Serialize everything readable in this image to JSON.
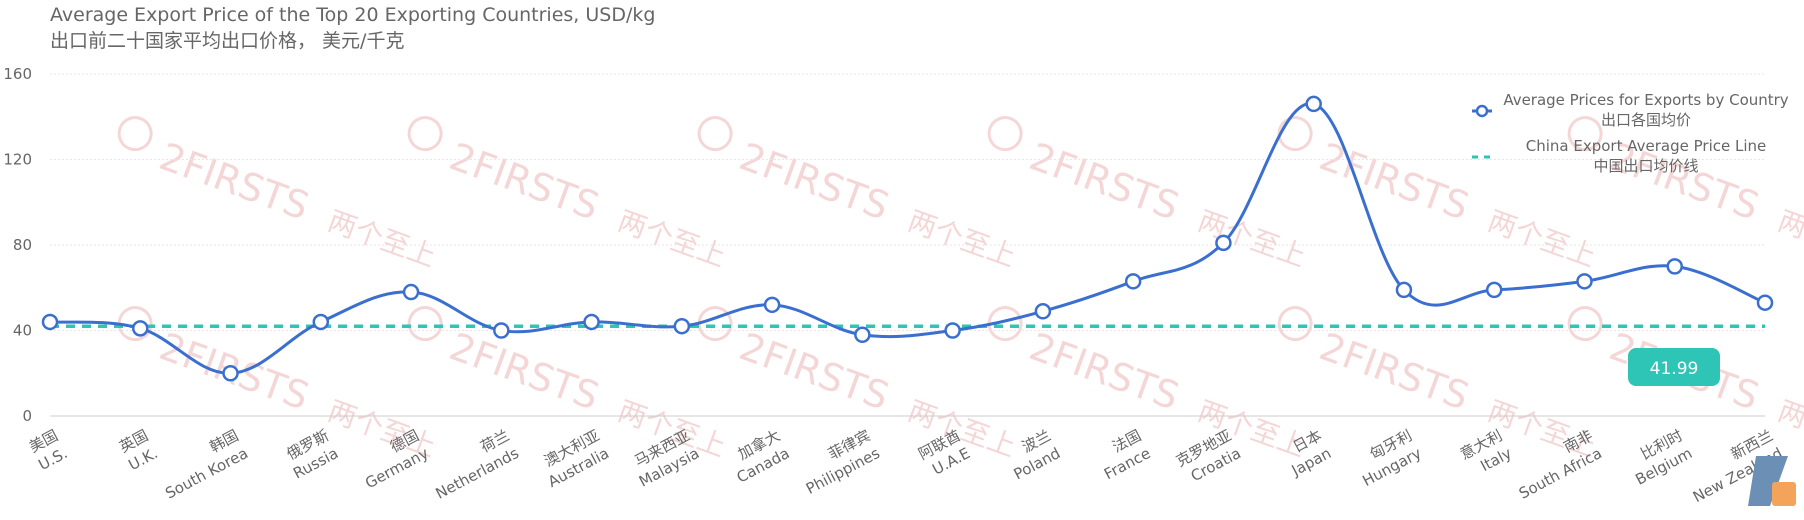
{
  "title": {
    "en": "Average Export Price of the Top 20 Exporting Countries, USD/kg",
    "zh": "出口前二十国家平均出口价格， 美元/千克"
  },
  "watermark": {
    "text_en": "2FIRSTS",
    "text_zh": "两个至上"
  },
  "colors": {
    "series": "#3a6fd0",
    "reference": "#2ec4b6",
    "axis_text": "#666666",
    "grid": "#e6e6e6"
  },
  "chart_data": {
    "type": "line",
    "categories": [
      {
        "zh": "美国",
        "en": "U.S."
      },
      {
        "zh": "英国",
        "en": "U.K."
      },
      {
        "zh": "韩国",
        "en": "South Korea"
      },
      {
        "zh": "俄罗斯",
        "en": "Russia"
      },
      {
        "zh": "德国",
        "en": "Germany"
      },
      {
        "zh": "荷兰",
        "en": "Netherlands"
      },
      {
        "zh": "澳大利亚",
        "en": "Australia"
      },
      {
        "zh": "马来西亚",
        "en": "Malaysia"
      },
      {
        "zh": "加拿大",
        "en": "Canada"
      },
      {
        "zh": "菲律宾",
        "en": "Philippines"
      },
      {
        "zh": "阿联酋",
        "en": "U.A.E"
      },
      {
        "zh": "波兰",
        "en": "Poland"
      },
      {
        "zh": "法国",
        "en": "France"
      },
      {
        "zh": "克罗地亚",
        "en": "Croatia"
      },
      {
        "zh": "日本",
        "en": "Japan"
      },
      {
        "zh": "匈牙利",
        "en": "Hungary"
      },
      {
        "zh": "意大利",
        "en": "Italy"
      },
      {
        "zh": "南非",
        "en": "South Africa"
      },
      {
        "zh": "比利时",
        "en": "Belgium"
      },
      {
        "zh": "新西兰",
        "en": "New Zealand"
      }
    ],
    "series": [
      {
        "name": "Average Prices for Exports by Country",
        "name_zh": "出口各国均价",
        "values": [
          44,
          41,
          20,
          44,
          58,
          40,
          44,
          42,
          52,
          38,
          40,
          49,
          63,
          81,
          146,
          59,
          59,
          63,
          70,
          53
        ],
        "smooth": true,
        "marker": "hollow-circle"
      }
    ],
    "reference_line": {
      "name": "China Export Average Price Line",
      "name_zh": "中国出口均价线",
      "value": 41.99,
      "label": "41.99",
      "style": "dashed"
    },
    "yticks": [
      0,
      40,
      80,
      120,
      160
    ],
    "ylim": [
      0,
      160
    ],
    "grid": true,
    "legend_position": "top-right"
  }
}
